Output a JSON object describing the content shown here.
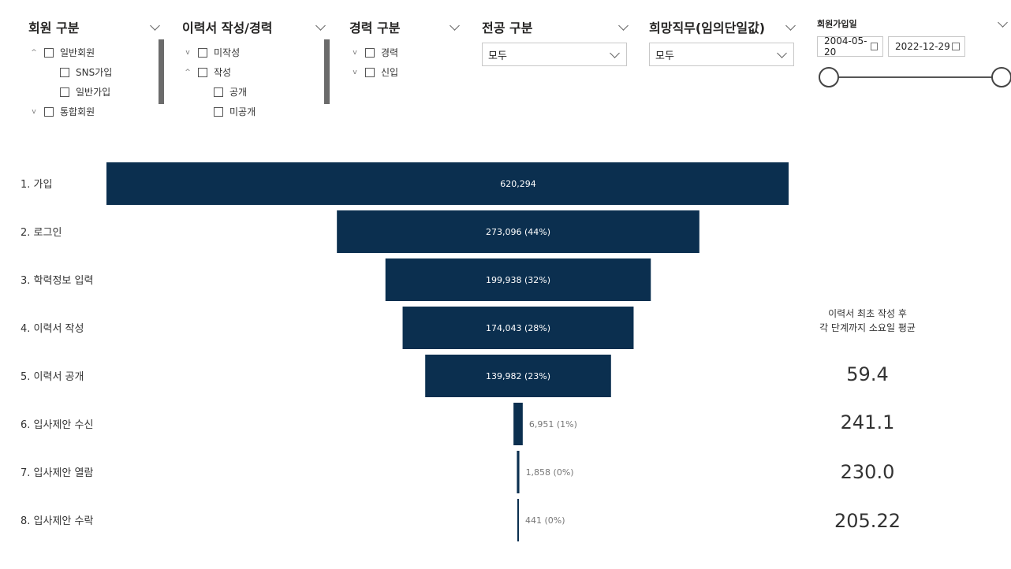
{
  "filters": {
    "member_type": {
      "title": "회원 구분",
      "items": [
        {
          "label": "일반회원",
          "expander": "^"
        },
        {
          "label": "SNS가입",
          "expander": ""
        },
        {
          "label": "일반가입",
          "expander": ""
        },
        {
          "label": "통합회원",
          "expander": "v"
        }
      ]
    },
    "resume_status": {
      "title": "이력서 작성/경력",
      "items": [
        {
          "label": "미작성",
          "expander": "v"
        },
        {
          "label": "작성",
          "expander": "^"
        },
        {
          "label": "공개",
          "expander": ""
        },
        {
          "label": "미공개",
          "expander": ""
        }
      ]
    },
    "career_type": {
      "title": "경력 구분",
      "items": [
        {
          "label": "경력",
          "expander": "v"
        },
        {
          "label": "신입",
          "expander": "v"
        }
      ]
    },
    "major": {
      "title": "전공 구분",
      "value": "모두"
    },
    "desired_job": {
      "title": "희망직무(임의단일값)",
      "value": "모두"
    },
    "join_date": {
      "title": "회원가입일",
      "start": "2004-05-20",
      "end": "2022-12-29"
    }
  },
  "chart_data": {
    "type": "funnel",
    "categories": [
      "1. 가입",
      "2. 로그인",
      "3. 학력정보 입력",
      "4. 이력서 작성",
      "5. 이력서 공개",
      "6. 입사제안 수신",
      "7. 입사제안 열람",
      "8. 입사제안 수락"
    ],
    "values": [
      620294,
      273096,
      199938,
      174043,
      139982,
      6951,
      1858,
      441
    ],
    "data_labels": [
      "620,294",
      "273,096 (44%)",
      "199,938 (32%)",
      "174,043 (28%)",
      "139,982 (23%)",
      "6,951 (1%)",
      "1,858 (0%)",
      "441 (0%)"
    ],
    "color": "#0b2f4f"
  },
  "side_metrics": {
    "caption_line1": "이력서 최초 작성 후",
    "caption_line2": "각 단계까지 소요일 평균",
    "values": [
      "59.4",
      "241.1",
      "230.0",
      "205.22"
    ]
  }
}
